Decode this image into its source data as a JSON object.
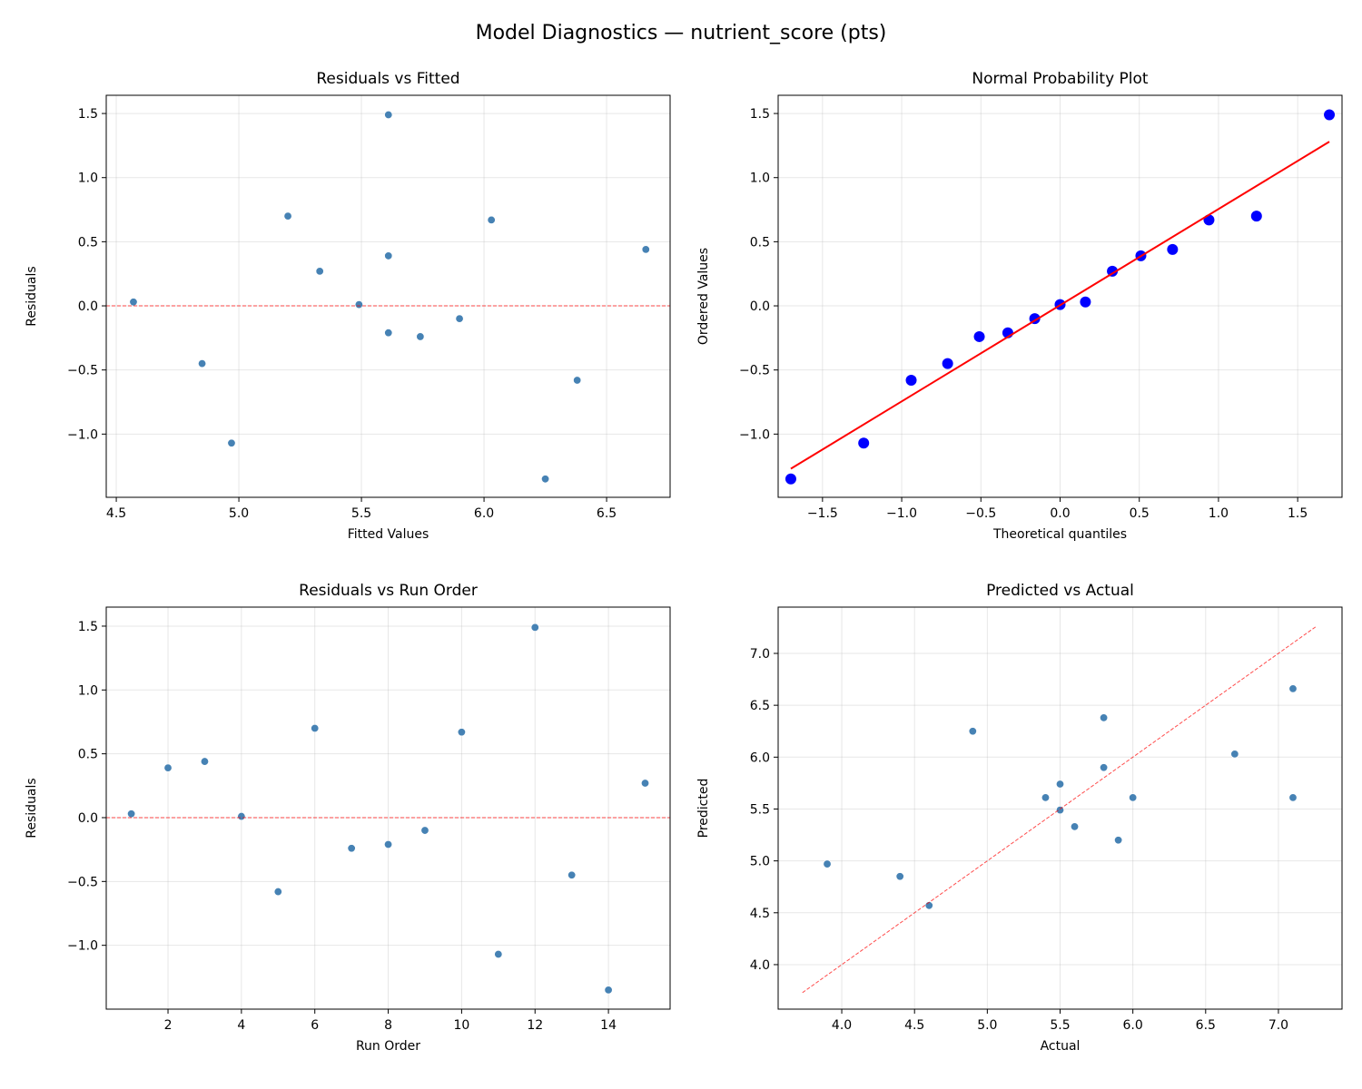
{
  "suptitle": "Model Diagnostics — nutrient_score (pts)",
  "chart_data": [
    {
      "type": "scatter",
      "title": "Residuals vs Fitted",
      "xlabel": "Fitted Values",
      "ylabel": "Residuals",
      "xlim": [
        4.459,
        6.759
      ],
      "ylim": [
        -1.493,
        1.642
      ],
      "xticks": [
        4.5,
        5.0,
        5.5,
        6.0,
        6.5
      ],
      "xtick_labels": [
        "4.5",
        "5.0",
        "5.5",
        "6.0",
        "6.5"
      ],
      "yticks": [
        -1.0,
        -0.5,
        0.0,
        0.5,
        1.0,
        1.5
      ],
      "ytick_labels": [
        "−1.0",
        "−0.5",
        "0.0",
        "0.5",
        "1.0",
        "1.5"
      ],
      "grid": true,
      "x": [
        4.57,
        5.61,
        6.66,
        5.49,
        6.38,
        5.2,
        5.74,
        5.61,
        5.9,
        6.03,
        4.97,
        5.61,
        4.85,
        6.25,
        5.33
      ],
      "y": [
        0.03,
        0.39,
        0.44,
        0.01,
        -0.58,
        0.7,
        -0.24,
        -0.21,
        -0.1,
        0.67,
        -1.07,
        1.49,
        -0.45,
        -1.35,
        0.27
      ],
      "point_color": "#4682b4",
      "reference_line": {
        "kind": "horizontal",
        "y": 0,
        "style": "dashed",
        "color": "#ff0000"
      }
    },
    {
      "type": "scatter",
      "title": "Normal Probability Plot",
      "xlabel": "Theoretical quantiles",
      "ylabel": "Ordered Values",
      "xlim": [
        -1.78,
        1.78
      ],
      "ylim": [
        -1.493,
        1.642
      ],
      "xticks": [
        -1.5,
        -1.0,
        -0.5,
        0.0,
        0.5,
        1.0,
        1.5
      ],
      "xtick_labels": [
        "−1.5",
        "−1.0",
        "−0.5",
        "0.0",
        "0.5",
        "1.0",
        "1.5"
      ],
      "yticks": [
        -1.0,
        -0.5,
        0.0,
        0.5,
        1.0,
        1.5
      ],
      "ytick_labels": [
        "−1.0",
        "−0.5",
        "0.0",
        "0.5",
        "1.0",
        "1.5"
      ],
      "grid": true,
      "x": [
        -1.7,
        -1.24,
        -0.94,
        -0.71,
        -0.51,
        -0.33,
        -0.16,
        0.0,
        0.16,
        0.33,
        0.51,
        0.71,
        0.94,
        1.24,
        1.7
      ],
      "y": [
        -1.35,
        -1.07,
        -0.58,
        -0.45,
        -0.24,
        -0.21,
        -0.1,
        0.01,
        0.03,
        0.27,
        0.39,
        0.44,
        0.67,
        0.7,
        1.49
      ],
      "point_color": "#0000ff",
      "reference_line": {
        "kind": "fit",
        "x": [
          -1.7,
          1.7
        ],
        "y": [
          -1.27,
          1.28
        ],
        "style": "solid",
        "color": "#ff0000"
      }
    },
    {
      "type": "scatter",
      "title": "Residuals vs Run Order",
      "xlabel": "Run Order",
      "ylabel": "Residuals",
      "xlim": [
        0.317,
        15.68
      ],
      "ylim": [
        -1.5,
        1.649
      ],
      "xticks": [
        2,
        4,
        6,
        8,
        10,
        12,
        14
      ],
      "xtick_labels": [
        "2",
        "4",
        "6",
        "8",
        "10",
        "12",
        "14"
      ],
      "yticks": [
        -1.0,
        -0.5,
        0.0,
        0.5,
        1.0,
        1.5
      ],
      "ytick_labels": [
        "−1.0",
        "−0.5",
        "0.0",
        "0.5",
        "1.0",
        "1.5"
      ],
      "grid": true,
      "x": [
        1,
        2,
        3,
        4,
        5,
        6,
        7,
        8,
        9,
        10,
        11,
        12,
        13,
        14,
        15
      ],
      "y": [
        0.03,
        0.39,
        0.44,
        0.01,
        -0.58,
        0.7,
        -0.24,
        -0.21,
        -0.1,
        0.67,
        -1.07,
        1.49,
        -0.45,
        -1.35,
        0.27
      ],
      "point_color": "#4682b4",
      "reference_line": {
        "kind": "horizontal",
        "y": 0,
        "style": "dashed",
        "color": "#ff0000"
      }
    },
    {
      "type": "scatter",
      "title": "Predicted vs Actual",
      "xlabel": "Actual",
      "ylabel": "Predicted",
      "xlim": [
        3.563,
        7.437
      ],
      "ylim": [
        3.571,
        7.446
      ],
      "xticks": [
        4.0,
        4.5,
        5.0,
        5.5,
        6.0,
        6.5,
        7.0
      ],
      "xtick_labels": [
        "4.0",
        "4.5",
        "5.0",
        "5.5",
        "6.0",
        "6.5",
        "7.0"
      ],
      "yticks": [
        4.0,
        4.5,
        5.0,
        5.5,
        6.0,
        6.5,
        7.0
      ],
      "ytick_labels": [
        "4.0",
        "4.5",
        "5.0",
        "5.5",
        "6.0",
        "6.5",
        "7.0"
      ],
      "grid": true,
      "x": [
        4.6,
        6.0,
        7.1,
        5.5,
        5.8,
        5.9,
        5.5,
        5.4,
        5.8,
        6.7,
        3.9,
        7.1,
        4.4,
        4.9,
        5.6
      ],
      "y": [
        4.57,
        5.61,
        6.66,
        5.49,
        6.38,
        5.2,
        5.74,
        5.61,
        5.9,
        6.03,
        4.97,
        5.61,
        4.85,
        6.25,
        5.33
      ],
      "point_color": "#4682b4",
      "reference_line": {
        "kind": "identity",
        "x": [
          3.73,
          7.26
        ],
        "y": [
          3.73,
          7.26
        ],
        "style": "dashed",
        "color": "#ff0000"
      }
    }
  ]
}
